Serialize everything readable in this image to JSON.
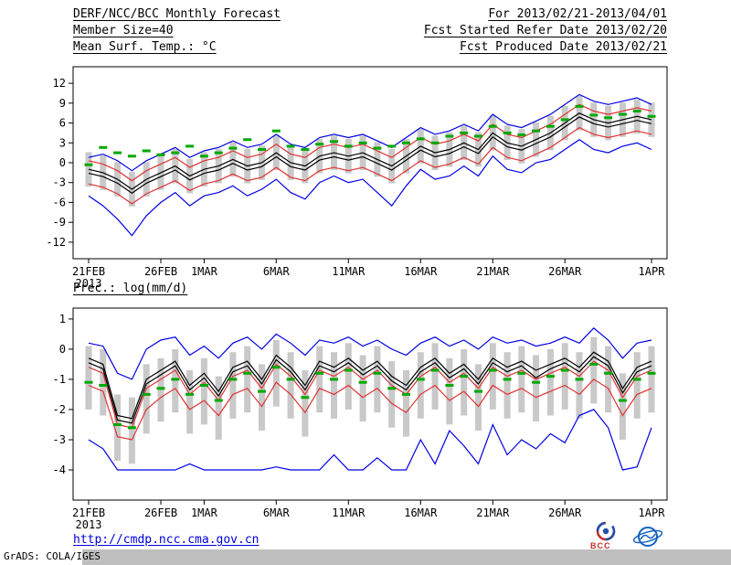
{
  "header": {
    "title": "DERF/NCC/BCC Monthly Forecast",
    "member_size": "Member Size=40",
    "range": "For 2013/02/21-2013/04/01",
    "start_date": "Fcst Started Refer Date 2013/02/20",
    "produced_date": "Fcst Produced Date 2013/02/21"
  },
  "footer": {
    "url": "http://cmdp.ncc.cma.gov.cn",
    "credit": "GrADS: COLA/IGES",
    "bcc_label": "BCC"
  },
  "colors": {
    "envelope_blue": "#0000e6",
    "quantile_red": "#e03232",
    "mean_black": "#000000",
    "observation_green": "#00a800",
    "spread_gray": "#c9c9c9",
    "url_blue": "#0000dd"
  },
  "chart_data": [
    {
      "type": "line",
      "title": "Mean Surf. Temp.: °C",
      "xlabel": "",
      "ylabel": "°C",
      "grid": false,
      "legend": "none",
      "ylim": [
        -13,
        13
      ],
      "ylim_draw": [
        -14.5,
        14.5
      ],
      "yticks": [
        -12,
        -9,
        -6,
        -3,
        0,
        3,
        6,
        9,
        12
      ],
      "x": [
        "21FEB",
        "22FEB",
        "23FEB",
        "24FEB",
        "25FEB",
        "26FEB",
        "27FEB",
        "28FEB",
        "1MAR",
        "2MAR",
        "3MAR",
        "4MAR",
        "5MAR",
        "6MAR",
        "7MAR",
        "8MAR",
        "9MAR",
        "10MAR",
        "11MAR",
        "12MAR",
        "13MAR",
        "14MAR",
        "15MAR",
        "16MAR",
        "17MAR",
        "18MAR",
        "19MAR",
        "20MAR",
        "21MAR",
        "22MAR",
        "23MAR",
        "24MAR",
        "25MAR",
        "26MAR",
        "27MAR",
        "28MAR",
        "29MAR",
        "30MAR",
        "31MAR",
        "1APR"
      ],
      "year": "2013",
      "xticks": [
        {
          "i": 0,
          "label": "21FEB",
          "sub": "2013"
        },
        {
          "i": 5,
          "label": "26FEB"
        },
        {
          "i": 8,
          "label": "1MAR"
        },
        {
          "i": 13,
          "label": "6MAR"
        },
        {
          "i": 18,
          "label": "11MAR"
        },
        {
          "i": 23,
          "label": "16MAR"
        },
        {
          "i": 28,
          "label": "21MAR"
        },
        {
          "i": 33,
          "label": "26MAR"
        },
        {
          "i": 39,
          "label": "1APR"
        }
      ],
      "series": [
        {
          "name": "ensemble-spread-bar",
          "type": "bar",
          "color": "#c9c9c9",
          "top": [
            1.6,
            1.1,
            0.1,
            -1.4,
            0.1,
            1.1,
            2.1,
            0.6,
            1.6,
            2.1,
            3.1,
            2.1,
            2.6,
            4.1,
            2.6,
            2.1,
            3.6,
            4.1,
            3.6,
            4.1,
            3.1,
            2.1,
            3.6,
            5.1,
            4.1,
            4.6,
            5.6,
            4.6,
            7.1,
            5.6,
            5.1,
            6.1,
            7.1,
            8.6,
            10.1,
            9.1,
            8.6,
            9.1,
            9.6,
            9.1
          ],
          "bottom": [
            -3.6,
            -4.1,
            -5.1,
            -6.6,
            -5.1,
            -4.1,
            -3.1,
            -4.6,
            -3.6,
            -3.1,
            -2.1,
            -3.1,
            -2.6,
            -1.1,
            -2.6,
            -3.1,
            -1.6,
            -1.1,
            -1.6,
            -1.1,
            -2.1,
            -3.1,
            -1.6,
            -0.1,
            -1.1,
            -0.6,
            0.4,
            -0.6,
            1.9,
            0.4,
            -0.1,
            0.9,
            1.9,
            3.4,
            4.9,
            3.9,
            3.4,
            3.9,
            4.4,
            3.9
          ]
        },
        {
          "name": "ensemble-min",
          "type": "line",
          "color": "#0000e6",
          "values": [
            -5.0,
            -6.5,
            -8.5,
            -11.0,
            -8.0,
            -6.0,
            -4.5,
            -6.5,
            -5.0,
            -4.5,
            -3.5,
            -5.0,
            -4.0,
            -2.5,
            -4.5,
            -5.5,
            -3.0,
            -2.0,
            -3.0,
            -2.5,
            -4.5,
            -6.5,
            -3.5,
            -1.0,
            -2.5,
            -2.0,
            -0.5,
            -2.0,
            1.0,
            -1.0,
            -1.5,
            0.0,
            0.5,
            2.0,
            3.5,
            2.0,
            1.5,
            2.5,
            3.0,
            2.0
          ]
        },
        {
          "name": "ensemble-max",
          "type": "line",
          "color": "#0000e6",
          "values": [
            0.8,
            1.3,
            0.3,
            -1.2,
            0.3,
            1.3,
            2.3,
            0.8,
            1.8,
            2.3,
            3.3,
            2.3,
            2.8,
            4.3,
            2.8,
            2.3,
            3.8,
            4.3,
            3.8,
            4.3,
            3.3,
            2.3,
            3.8,
            5.3,
            4.3,
            4.8,
            5.8,
            4.8,
            7.3,
            5.8,
            5.3,
            6.3,
            7.3,
            8.8,
            10.3,
            9.3,
            8.8,
            9.3,
            9.8,
            8.8
          ]
        },
        {
          "name": "lower-quantile",
          "type": "line",
          "color": "#e03232",
          "values": [
            -3.2,
            -3.7,
            -4.7,
            -6.2,
            -4.7,
            -3.7,
            -2.7,
            -4.2,
            -3.2,
            -2.7,
            -1.7,
            -2.7,
            -2.2,
            -0.7,
            -2.2,
            -2.7,
            -1.2,
            -0.7,
            -1.2,
            -0.7,
            -1.7,
            -2.7,
            -1.2,
            0.3,
            -0.7,
            -0.2,
            0.8,
            -0.2,
            2.3,
            0.8,
            0.3,
            1.3,
            2.3,
            3.8,
            5.3,
            4.3,
            3.8,
            4.3,
            4.8,
            4.3
          ]
        },
        {
          "name": "upper-quantile",
          "type": "line",
          "color": "#e03232",
          "values": [
            0.3,
            -0.2,
            -1.2,
            -2.7,
            -1.2,
            -0.2,
            0.8,
            -0.7,
            0.3,
            0.8,
            1.8,
            0.8,
            1.3,
            2.8,
            1.3,
            0.8,
            2.3,
            2.8,
            2.3,
            2.8,
            1.8,
            0.8,
            2.3,
            3.8,
            2.8,
            3.3,
            4.3,
            3.3,
            5.8,
            4.3,
            3.8,
            4.8,
            5.8,
            7.3,
            8.8,
            7.8,
            7.3,
            7.8,
            8.3,
            7.8
          ]
        },
        {
          "name": "control-run",
          "type": "line",
          "color": "#000000",
          "values": [
            -1.6,
            -2.1,
            -3.1,
            -4.6,
            -3.1,
            -2.1,
            -1.1,
            -2.6,
            -1.6,
            -1.1,
            -0.1,
            -1.1,
            -0.6,
            0.9,
            -0.6,
            -1.1,
            0.4,
            0.9,
            0.4,
            0.9,
            -0.1,
            -1.1,
            0.4,
            1.9,
            0.9,
            1.4,
            2.4,
            1.4,
            3.9,
            2.4,
            1.9,
            2.9,
            3.9,
            5.4,
            6.9,
            5.9,
            5.4,
            5.9,
            6.4,
            5.9
          ]
        },
        {
          "name": "ensemble-mean",
          "type": "line",
          "color": "#000000",
          "values": [
            -1.0,
            -1.5,
            -2.5,
            -4.0,
            -2.5,
            -1.5,
            -0.5,
            -2.0,
            -1.0,
            -0.5,
            0.5,
            -0.5,
            0.0,
            1.5,
            0.0,
            -0.5,
            1.0,
            1.5,
            1.0,
            1.5,
            0.5,
            -0.5,
            1.0,
            2.5,
            1.5,
            2.0,
            3.0,
            2.0,
            4.5,
            3.0,
            2.5,
            3.5,
            4.5,
            6.0,
            7.5,
            6.5,
            6.0,
            6.5,
            7.0,
            6.5
          ]
        },
        {
          "name": "observation",
          "type": "dash",
          "color": "#00a800",
          "values": [
            -0.3,
            2.3,
            1.5,
            1.0,
            1.8,
            1.2,
            1.5,
            2.5,
            1.0,
            1.5,
            2.2,
            3.5,
            2.0,
            4.8,
            2.5,
            2.0,
            2.8,
            3.2,
            2.5,
            3.0,
            2.2,
            2.5,
            3.0,
            3.6,
            3.0,
            4.0,
            4.5,
            4.0,
            5.5,
            4.5,
            4.2,
            4.8,
            5.5,
            6.5,
            8.5,
            7.2,
            6.8,
            7.3,
            7.8,
            7.0
          ]
        }
      ]
    },
    {
      "type": "line",
      "title": "Prec.: log(mm/d)",
      "xlabel": "",
      "ylabel": "log(mm/d)",
      "grid": false,
      "legend": "none",
      "ylim": [
        -4.8,
        1.3
      ],
      "ylim_draw": [
        -5.0,
        1.36
      ],
      "yticks": [
        -4,
        -3,
        -2,
        -1,
        0,
        1
      ],
      "x": [
        "21FEB",
        "22FEB",
        "23FEB",
        "24FEB",
        "25FEB",
        "26FEB",
        "27FEB",
        "28FEB",
        "1MAR",
        "2MAR",
        "3MAR",
        "4MAR",
        "5MAR",
        "6MAR",
        "7MAR",
        "8MAR",
        "9MAR",
        "10MAR",
        "11MAR",
        "12MAR",
        "13MAR",
        "14MAR",
        "15MAR",
        "16MAR",
        "17MAR",
        "18MAR",
        "19MAR",
        "20MAR",
        "21MAR",
        "22MAR",
        "23MAR",
        "24MAR",
        "25MAR",
        "26MAR",
        "27MAR",
        "28MAR",
        "29MAR",
        "30MAR",
        "31MAR",
        "1APR"
      ],
      "year": "2013",
      "xticks": [
        {
          "i": 0,
          "label": "21FEB",
          "sub": "2013"
        },
        {
          "i": 5,
          "label": "26FEB"
        },
        {
          "i": 8,
          "label": "1MAR"
        },
        {
          "i": 13,
          "label": "6MAR"
        },
        {
          "i": 18,
          "label": "11MAR"
        },
        {
          "i": 23,
          "label": "16MAR"
        },
        {
          "i": 28,
          "label": "21MAR"
        },
        {
          "i": 33,
          "label": "26MAR"
        },
        {
          "i": 39,
          "label": "1APR"
        }
      ],
      "series": [
        {
          "name": "ensemble-spread-bar",
          "type": "bar",
          "color": "#c9c9c9",
          "top": [
            0.1,
            0.0,
            -1.5,
            -1.6,
            -0.5,
            -0.3,
            0.0,
            -0.7,
            -0.3,
            -0.9,
            -0.1,
            0.1,
            -0.5,
            0.3,
            -0.1,
            -0.7,
            0.1,
            -0.1,
            0.2,
            -0.2,
            0.1,
            -0.4,
            -0.7,
            -0.1,
            0.2,
            -0.3,
            0.0,
            -0.5,
            0.2,
            -0.1,
            0.1,
            -0.2,
            0.0,
            0.2,
            -0.1,
            0.4,
            0.1,
            -0.8,
            -0.1,
            0.1
          ],
          "bottom": [
            -2.0,
            -2.2,
            -3.7,
            -3.8,
            -2.8,
            -2.4,
            -2.1,
            -2.8,
            -2.5,
            -3.0,
            -2.3,
            -2.1,
            -2.7,
            -1.9,
            -2.3,
            -2.9,
            -2.1,
            -2.3,
            -2.0,
            -2.4,
            -2.1,
            -2.6,
            -2.9,
            -2.3,
            -2.0,
            -2.5,
            -2.2,
            -2.7,
            -2.0,
            -2.3,
            -2.1,
            -2.4,
            -2.2,
            -2.0,
            -2.3,
            -1.8,
            -2.1,
            -3.0,
            -2.3,
            -2.1
          ]
        },
        {
          "name": "ensemble-min",
          "type": "line",
          "color": "#0000e6",
          "values": [
            -3.0,
            -3.3,
            -4.0,
            -4.0,
            -4.0,
            -4.0,
            -4.0,
            -3.8,
            -4.0,
            -4.0,
            -4.0,
            -4.0,
            -4.0,
            -3.9,
            -4.0,
            -4.0,
            -4.0,
            -3.5,
            -4.0,
            -4.0,
            -3.6,
            -4.0,
            -4.0,
            -3.0,
            -3.8,
            -2.7,
            -3.2,
            -3.8,
            -2.5,
            -3.5,
            -3.0,
            -3.3,
            -2.8,
            -3.1,
            -2.2,
            -2.0,
            -2.6,
            -4.0,
            -3.9,
            -2.6
          ]
        },
        {
          "name": "ensemble-max",
          "type": "line",
          "color": "#0000e6",
          "values": [
            0.2,
            0.1,
            -0.8,
            -1.0,
            0.0,
            0.3,
            0.4,
            -0.2,
            0.1,
            -0.3,
            0.2,
            0.4,
            0.0,
            0.5,
            0.2,
            -0.2,
            0.3,
            0.2,
            0.4,
            0.1,
            0.3,
            0.0,
            -0.2,
            0.2,
            0.4,
            0.1,
            0.3,
            0.0,
            0.4,
            0.2,
            0.3,
            0.1,
            0.2,
            0.4,
            0.2,
            0.7,
            0.3,
            -0.3,
            0.2,
            0.3
          ]
        },
        {
          "name": "lower-quantile",
          "type": "line",
          "color": "#e03232",
          "values": [
            -1.2,
            -1.4,
            -2.9,
            -3.0,
            -2.0,
            -1.6,
            -1.3,
            -2.0,
            -1.7,
            -2.2,
            -1.5,
            -1.3,
            -1.9,
            -1.1,
            -1.5,
            -2.1,
            -1.3,
            -1.5,
            -1.2,
            -1.6,
            -1.3,
            -1.8,
            -2.1,
            -1.5,
            -1.2,
            -1.7,
            -1.4,
            -1.9,
            -1.2,
            -1.5,
            -1.3,
            -1.6,
            -1.4,
            -1.2,
            -1.5,
            -1.0,
            -1.3,
            -2.2,
            -1.5,
            -1.3
          ]
        },
        {
          "name": "upper-quantile",
          "type": "line",
          "color": "#e03232",
          "values": [
            -0.6,
            -0.8,
            -2.5,
            -2.6,
            -1.3,
            -1.0,
            -0.7,
            -1.5,
            -1.1,
            -1.7,
            -0.9,
            -0.7,
            -1.3,
            -0.5,
            -0.9,
            -1.5,
            -0.7,
            -0.9,
            -0.6,
            -1.0,
            -0.7,
            -1.2,
            -1.5,
            -0.9,
            -0.6,
            -1.1,
            -0.8,
            -1.3,
            -0.6,
            -0.9,
            -0.7,
            -1.0,
            -0.8,
            -0.6,
            -0.9,
            -0.4,
            -0.7,
            -1.6,
            -0.9,
            -0.7
          ]
        },
        {
          "name": "control-run",
          "type": "line",
          "color": "#000000",
          "values": [
            -0.45,
            -0.65,
            -2.35,
            -2.45,
            -1.15,
            -0.85,
            -0.55,
            -1.35,
            -0.95,
            -1.55,
            -0.75,
            -0.55,
            -1.15,
            -0.35,
            -0.75,
            -1.35,
            -0.55,
            -0.75,
            -0.45,
            -0.85,
            -0.55,
            -1.05,
            -1.35,
            -0.75,
            -0.45,
            -0.95,
            -0.65,
            -1.15,
            -0.45,
            -0.75,
            -0.55,
            -0.95,
            -0.65,
            -0.45,
            -0.75,
            -0.25,
            -0.55,
            -1.45,
            -0.75,
            -0.55
          ]
        },
        {
          "name": "ensemble-mean",
          "type": "line",
          "color": "#000000",
          "values": [
            -0.3,
            -0.5,
            -2.2,
            -2.3,
            -1.0,
            -0.7,
            -0.4,
            -1.2,
            -0.8,
            -1.4,
            -0.6,
            -0.4,
            -1.0,
            -0.2,
            -0.6,
            -1.2,
            -0.4,
            -0.6,
            -0.3,
            -0.7,
            -0.4,
            -0.9,
            -1.2,
            -0.6,
            -0.3,
            -0.8,
            -0.5,
            -1.0,
            -0.3,
            -0.6,
            -0.4,
            -0.7,
            -0.5,
            -0.3,
            -0.6,
            -0.1,
            -0.4,
            -1.3,
            -0.6,
            -0.4
          ]
        },
        {
          "name": "observation",
          "type": "dash",
          "color": "#00a800",
          "values": [
            -1.1,
            -1.2,
            -2.5,
            -2.6,
            -1.5,
            -1.3,
            -1.0,
            -1.5,
            -1.2,
            -1.7,
            -1.0,
            -0.8,
            -1.4,
            -0.6,
            -1.0,
            -1.6,
            -0.8,
            -1.0,
            -0.7,
            -1.1,
            -0.8,
            -1.3,
            -1.5,
            -1.0,
            -0.7,
            -1.2,
            -0.9,
            -1.4,
            -0.7,
            -1.0,
            -0.8,
            -1.1,
            -0.9,
            -0.7,
            -1.0,
            -0.5,
            -0.8,
            -1.7,
            -1.0,
            -0.8
          ]
        }
      ]
    }
  ]
}
